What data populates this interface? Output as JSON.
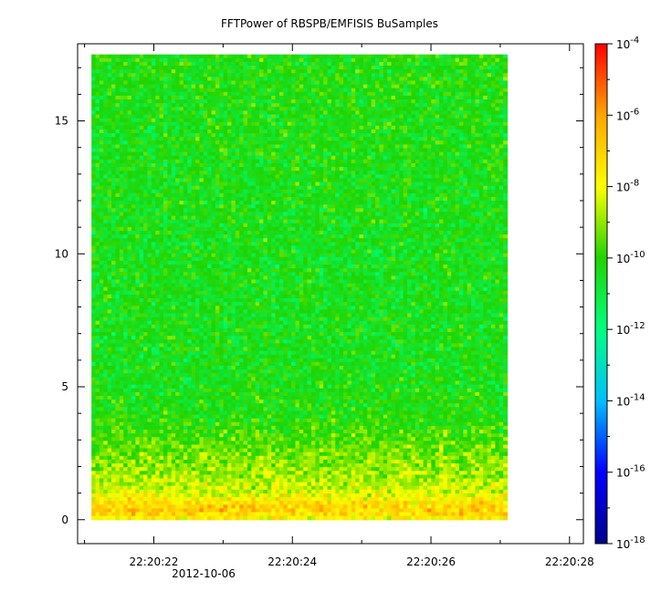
{
  "chart_data": {
    "type": "heatmap",
    "title": "FFTPower of RBSPB/EMFISIS  BuSamples",
    "xlabel": "",
    "ylabel": "",
    "x_axis": {
      "ticks": [
        "22:20:22",
        "22:20:24",
        "22:20:26",
        "22:20:28"
      ],
      "date_label": "2012-10-06",
      "range": [
        "22:20:20.9",
        "22:20:28.2"
      ]
    },
    "y_axis": {
      "ticks": [
        0,
        5,
        10,
        15
      ],
      "range": [
        -0.9,
        17.9
      ],
      "data_extent": [
        0,
        17.5
      ]
    },
    "data_time_extent": [
      "22:20:21.1",
      "22:20:27.1"
    ],
    "colorbar": {
      "scale": "log",
      "range": [
        "1e-18",
        "1e-4"
      ],
      "tick_labels": [
        {
          "base": "10",
          "exp": "-4"
        },
        {
          "base": "10",
          "exp": "-6"
        },
        {
          "base": "10",
          "exp": "-8"
        },
        {
          "base": "10",
          "exp": "-10"
        },
        {
          "base": "10",
          "exp": "-12"
        },
        {
          "base": "10",
          "exp": "-14"
        },
        {
          "base": "10",
          "exp": "-16"
        },
        {
          "base": "10",
          "exp": "-18"
        }
      ],
      "colors": [
        "#00008b",
        "#0000ff",
        "#00bfff",
        "#00ff7f",
        "#1fd400",
        "#ffff00",
        "#ffa500",
        "#ff0000"
      ]
    },
    "power_profile": {
      "description_units": "log10 power vs y (approx.)",
      "y": [
        0,
        0.3,
        0.6,
        1.0,
        1.5,
        2.0,
        2.5,
        3.0,
        3.5,
        4.0,
        6.0,
        10.0,
        14.0,
        17.5
      ],
      "log10_power": [
        -8.0,
        -6.8,
        -7.2,
        -8.3,
        -8.7,
        -9.0,
        -9.3,
        -9.6,
        -9.9,
        -10.2,
        -10.4,
        -10.4,
        -10.3,
        -10.2
      ]
    },
    "grid": false,
    "legend": "none"
  }
}
